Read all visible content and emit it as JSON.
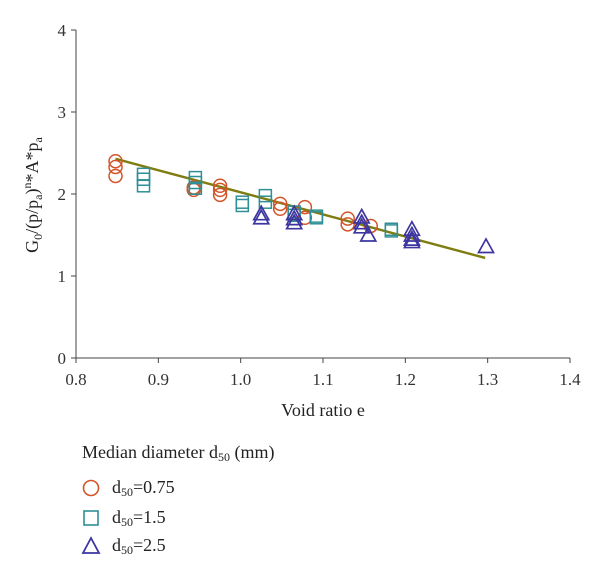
{
  "chart_data": {
    "type": "scatter",
    "ylabel": "G0/(p/pa)n*A*pa",
    "xlabel": "Void ratio e",
    "xlim": [
      0.8,
      1.4
    ],
    "ylim": [
      0,
      4
    ],
    "x_ticks": [
      "0.8",
      "0.9",
      "1.0",
      "1.1",
      "1.2",
      "1.3",
      "1.4"
    ],
    "y_ticks": [
      "0",
      "1",
      "2",
      "3",
      "4"
    ],
    "legend_title": "Median diameter d50 (mm)",
    "series": [
      {
        "name": "d50=0.75",
        "marker": "circle",
        "color": "#d2552a",
        "points": [
          [
            0.848,
            2.4
          ],
          [
            0.848,
            2.33
          ],
          [
            0.848,
            2.22
          ],
          [
            0.943,
            2.08
          ],
          [
            0.943,
            2.05
          ],
          [
            0.975,
            2.1
          ],
          [
            0.975,
            2.05
          ],
          [
            0.975,
            1.99
          ],
          [
            1.048,
            1.88
          ],
          [
            1.048,
            1.82
          ],
          [
            1.078,
            1.84
          ],
          [
            1.078,
            1.71
          ],
          [
            1.13,
            1.7
          ],
          [
            1.13,
            1.63
          ],
          [
            1.158,
            1.61
          ]
        ]
      },
      {
        "name": "d50=1.5",
        "marker": "square",
        "color": "#2f8f96",
        "points": [
          [
            0.882,
            2.24
          ],
          [
            0.882,
            2.18
          ],
          [
            0.882,
            2.1
          ],
          [
            0.945,
            2.2
          ],
          [
            0.945,
            2.14
          ],
          [
            0.945,
            2.07
          ],
          [
            1.002,
            1.9
          ],
          [
            1.002,
            1.86
          ],
          [
            1.03,
            1.98
          ],
          [
            1.03,
            1.9
          ],
          [
            1.065,
            1.78
          ],
          [
            1.065,
            1.74
          ],
          [
            1.092,
            1.73
          ],
          [
            1.092,
            1.71
          ],
          [
            1.183,
            1.57
          ],
          [
            1.183,
            1.55
          ]
        ]
      },
      {
        "name": "d50=2.5",
        "marker": "triangle",
        "color": "#3d35a0",
        "points": [
          [
            1.025,
            1.76
          ],
          [
            1.025,
            1.71
          ],
          [
            1.065,
            1.76
          ],
          [
            1.065,
            1.7
          ],
          [
            1.065,
            1.65
          ],
          [
            1.147,
            1.72
          ],
          [
            1.147,
            1.65
          ],
          [
            1.147,
            1.6
          ],
          [
            1.155,
            1.5
          ],
          [
            1.208,
            1.57
          ],
          [
            1.208,
            1.5
          ],
          [
            1.208,
            1.45
          ],
          [
            1.208,
            1.42
          ],
          [
            1.298,
            1.36
          ]
        ]
      }
    ],
    "fit_line": {
      "color": "#7f7d10",
      "points": [
        [
          0.848,
          2.43
        ],
        [
          1.297,
          1.22
        ]
      ]
    }
  }
}
